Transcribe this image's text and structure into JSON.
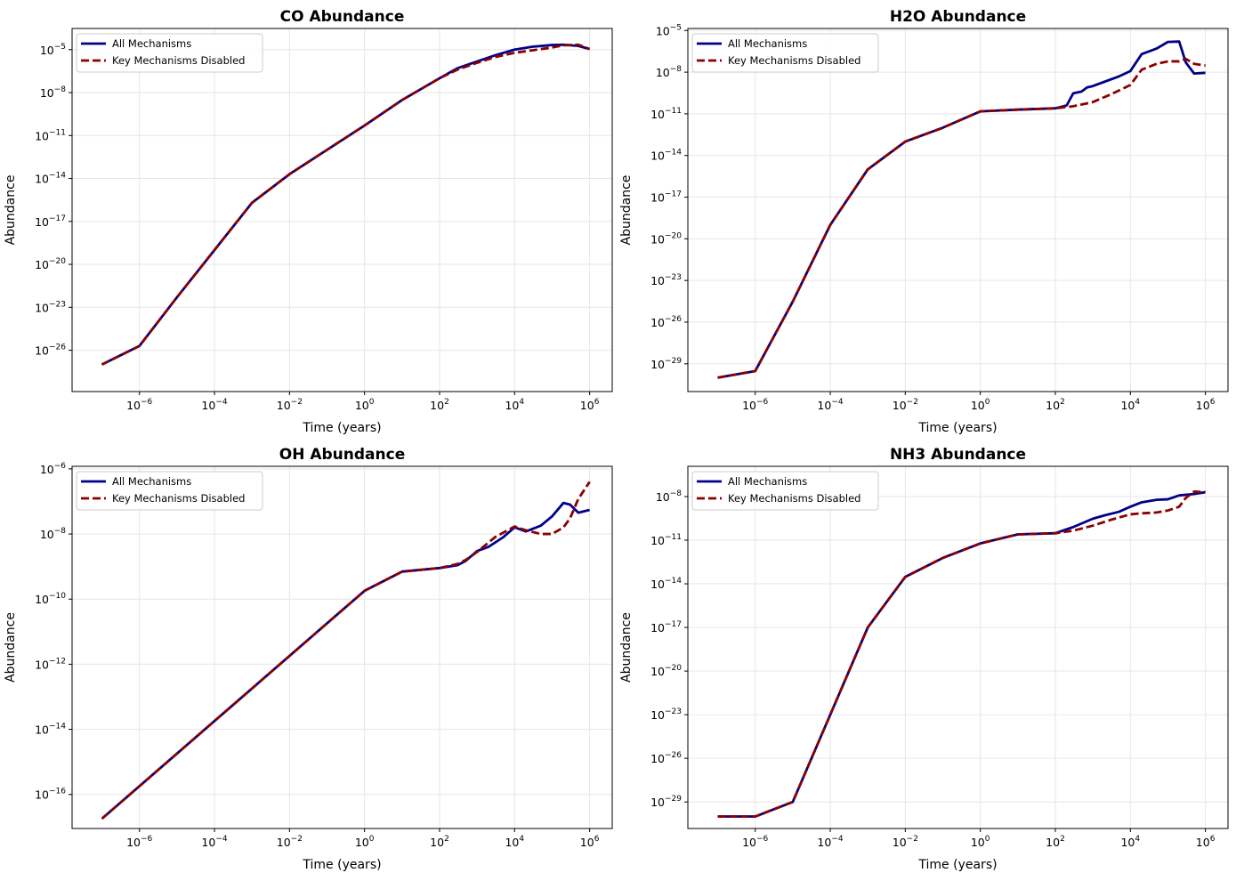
{
  "chart_data": [
    {
      "type": "line",
      "title": "CO Abundance",
      "xlabel": "Time (years)",
      "ylabel": "Abundance",
      "xscale": "log",
      "yscale": "log",
      "xlim": [
        1.6e-08,
        4000000.0
      ],
      "ylim": [
        1.3e-29,
        0.0003
      ],
      "xticks": [
        -6,
        -4,
        -2,
        0,
        2,
        4,
        6
      ],
      "yticks": [
        -26,
        -23,
        -20,
        -17,
        -14,
        -11,
        -8,
        -5
      ],
      "grid": true,
      "legend": "upper-left",
      "series": [
        {
          "name": "All Mechanisms",
          "color": "#00008b",
          "style": "solid",
          "x": [
            1e-07,
            1e-06,
            1e-05,
            0.0001,
            0.001,
            0.01,
            0.1,
            1,
            10,
            100,
            300,
            1000,
            3000,
            10000,
            30000,
            100000,
            200000,
            500000,
            1000000
          ],
          "y": [
            1e-27,
            2e-26,
            5e-23,
            1e-19,
            2e-16,
            2e-14,
            1e-12,
            5e-11,
            3e-09,
            1e-07,
            5e-07,
            1.5e-06,
            4e-06,
            1e-05,
            1.6e-05,
            2.1e-05,
            2.2e-05,
            1.8e-05,
            1.1e-05
          ]
        },
        {
          "name": "Key Mechanisms Disabled",
          "color": "#8b0000",
          "style": "dashed",
          "x": [
            1e-07,
            1e-06,
            1e-05,
            0.0001,
            0.001,
            0.01,
            0.1,
            1,
            10,
            100,
            300,
            1000,
            3000,
            10000,
            30000,
            100000,
            200000,
            500000,
            1000000
          ],
          "y": [
            1e-27,
            2e-26,
            5e-23,
            1e-19,
            2e-16,
            2e-14,
            1e-12,
            5e-11,
            3e-09,
            1e-07,
            4e-07,
            1.2e-06,
            3e-06,
            6e-06,
            9e-06,
            1.4e-05,
            2e-05,
            2.2e-05,
            1.1e-05
          ]
        }
      ]
    },
    {
      "type": "line",
      "title": "H2O Abundance",
      "xlabel": "Time (years)",
      "ylabel": "Abundance",
      "xscale": "log",
      "yscale": "log",
      "xlim": [
        1.6e-08,
        4000000.0
      ],
      "ylim": [
        1e-31,
        1.4e-05
      ],
      "xticks": [
        -6,
        -4,
        -2,
        0,
        2,
        4,
        6
      ],
      "yticks": [
        -29,
        -26,
        -23,
        -20,
        -17,
        -14,
        -11,
        -8,
        -5
      ],
      "grid": true,
      "legend": "upper-left",
      "series": [
        {
          "name": "All Mechanisms",
          "color": "#00008b",
          "style": "solid",
          "x": [
            1e-07,
            1e-06,
            1e-05,
            0.0001,
            0.001,
            0.01,
            0.1,
            1,
            10,
            100,
            200,
            300,
            500,
            700,
            1000,
            2000,
            5000,
            10000,
            20000,
            50000,
            100000,
            200000,
            300000,
            500000,
            1000000
          ],
          "y": [
            1e-30,
            3e-30,
            3e-25,
            1e-19,
            1e-15,
            1e-13,
            1e-12,
            1.5e-11,
            2e-11,
            2.5e-11,
            4e-11,
            3e-10,
            4e-10,
            8e-10,
            1e-09,
            2e-09,
            5e-09,
            1.2e-08,
            2e-07,
            5e-07,
            1.5e-06,
            1.6e-06,
            5e-08,
            8e-09,
            9e-09
          ]
        },
        {
          "name": "Key Mechanisms Disabled",
          "color": "#8b0000",
          "style": "dashed",
          "x": [
            1e-07,
            1e-06,
            1e-05,
            0.0001,
            0.001,
            0.01,
            0.1,
            1,
            10,
            100,
            300,
            1000,
            3000,
            10000,
            20000,
            50000,
            100000,
            200000,
            300000,
            500000,
            1000000
          ],
          "y": [
            1e-30,
            3e-30,
            3e-25,
            1e-19,
            1e-15,
            1e-13,
            1e-12,
            1.5e-11,
            2e-11,
            2.5e-11,
            3.5e-11,
            7e-11,
            2.5e-10,
            1.2e-09,
            1.5e-08,
            4e-08,
            6e-08,
            6e-08,
            9e-08,
            4e-08,
            3e-08
          ]
        }
      ]
    },
    {
      "type": "line",
      "title": "OH Abundance",
      "xlabel": "Time (years)",
      "ylabel": "Abundance",
      "xscale": "log",
      "yscale": "log",
      "xlim": [
        1.6e-08,
        4000000.0
      ],
      "ylim": [
        9e-18,
        1.2e-06
      ],
      "xticks": [
        -6,
        -4,
        -2,
        0,
        2,
        4,
        6
      ],
      "yticks": [
        -16,
        -14,
        -12,
        -10,
        -8,
        -6
      ],
      "grid": true,
      "legend": "upper-left",
      "series": [
        {
          "name": "All Mechanisms",
          "color": "#00008b",
          "style": "solid",
          "x": [
            1e-07,
            1e-06,
            1e-05,
            0.0001,
            0.001,
            0.01,
            0.1,
            1,
            10,
            100,
            300,
            500,
            1000,
            2000,
            5000,
            10000,
            20000,
            50000,
            100000,
            200000,
            300000,
            500000,
            1000000
          ],
          "y": [
            1.8e-17,
            1.8e-16,
            1.8e-15,
            1.8e-14,
            1.8e-13,
            1.8e-12,
            1.8e-11,
            1.8e-10,
            7e-10,
            9e-10,
            1.1e-09,
            1.5e-09,
            3e-09,
            4e-09,
            8e-09,
            1.6e-08,
            1.2e-08,
            1.8e-08,
            3.5e-08,
            9e-08,
            8e-08,
            4.5e-08,
            5.5e-08
          ]
        },
        {
          "name": "Key Mechanisms Disabled",
          "color": "#8b0000",
          "style": "dashed",
          "x": [
            1e-07,
            1e-06,
            1e-05,
            0.0001,
            0.001,
            0.01,
            0.1,
            1,
            10,
            100,
            300,
            500,
            1000,
            3000,
            10000,
            20000,
            50000,
            100000,
            200000,
            300000,
            500000,
            1000000
          ],
          "y": [
            1.8e-17,
            1.8e-16,
            1.8e-15,
            1.8e-14,
            1.8e-13,
            1.8e-12,
            1.8e-11,
            1.8e-10,
            7e-10,
            9e-10,
            1.2e-09,
            1.6e-09,
            2.8e-09,
            8e-09,
            1.7e-08,
            1.3e-08,
            1e-08,
            1e-08,
            1.6e-08,
            3e-08,
            1.2e-07,
            4e-07
          ]
        }
      ]
    },
    {
      "type": "line",
      "title": "NH3 Abundance",
      "xlabel": "Time (years)",
      "ylabel": "Abundance",
      "xscale": "log",
      "yscale": "log",
      "xlim": [
        1.6e-08,
        4000000.0
      ],
      "ylim": [
        1.5e-31,
        1.2e-06
      ],
      "xticks": [
        -6,
        -4,
        -2,
        0,
        2,
        4,
        6
      ],
      "yticks": [
        -29,
        -26,
        -23,
        -20,
        -17,
        -14,
        -11,
        -8
      ],
      "grid": true,
      "legend": "upper-left",
      "series": [
        {
          "name": "All Mechanisms",
          "color": "#00008b",
          "style": "solid",
          "x": [
            1e-07,
            1e-06,
            1e-05,
            0.0001,
            0.001,
            0.01,
            0.1,
            1,
            10,
            100,
            300,
            1000,
            2000,
            5000,
            10000,
            20000,
            50000,
            100000,
            200000,
            500000,
            1000000
          ],
          "y": [
            1e-30,
            1e-30,
            1e-29,
            1e-23,
            1e-17,
            3e-14,
            6e-13,
            6e-12,
            2.5e-11,
            3e-11,
            8e-11,
            3e-10,
            5e-10,
            9e-10,
            2e-09,
            4e-09,
            6e-09,
            6.5e-09,
            1.2e-08,
            1.5e-08,
            2e-08
          ]
        },
        {
          "name": "Key Mechanisms Disabled",
          "color": "#8b0000",
          "style": "dashed",
          "x": [
            1e-07,
            1e-06,
            1e-05,
            0.0001,
            0.001,
            0.01,
            0.1,
            1,
            10,
            100,
            300,
            1000,
            3000,
            10000,
            20000,
            50000,
            100000,
            200000,
            300000,
            500000,
            1000000
          ],
          "y": [
            1e-30,
            1e-30,
            1e-29,
            1e-23,
            1e-17,
            3e-14,
            6e-13,
            6e-12,
            2.5e-11,
            3e-11,
            4.5e-11,
            1e-10,
            2.5e-10,
            6e-10,
            7e-10,
            8e-10,
            1.1e-09,
            2e-09,
            8e-09,
            2.2e-08,
            2e-08
          ]
        }
      ]
    }
  ]
}
